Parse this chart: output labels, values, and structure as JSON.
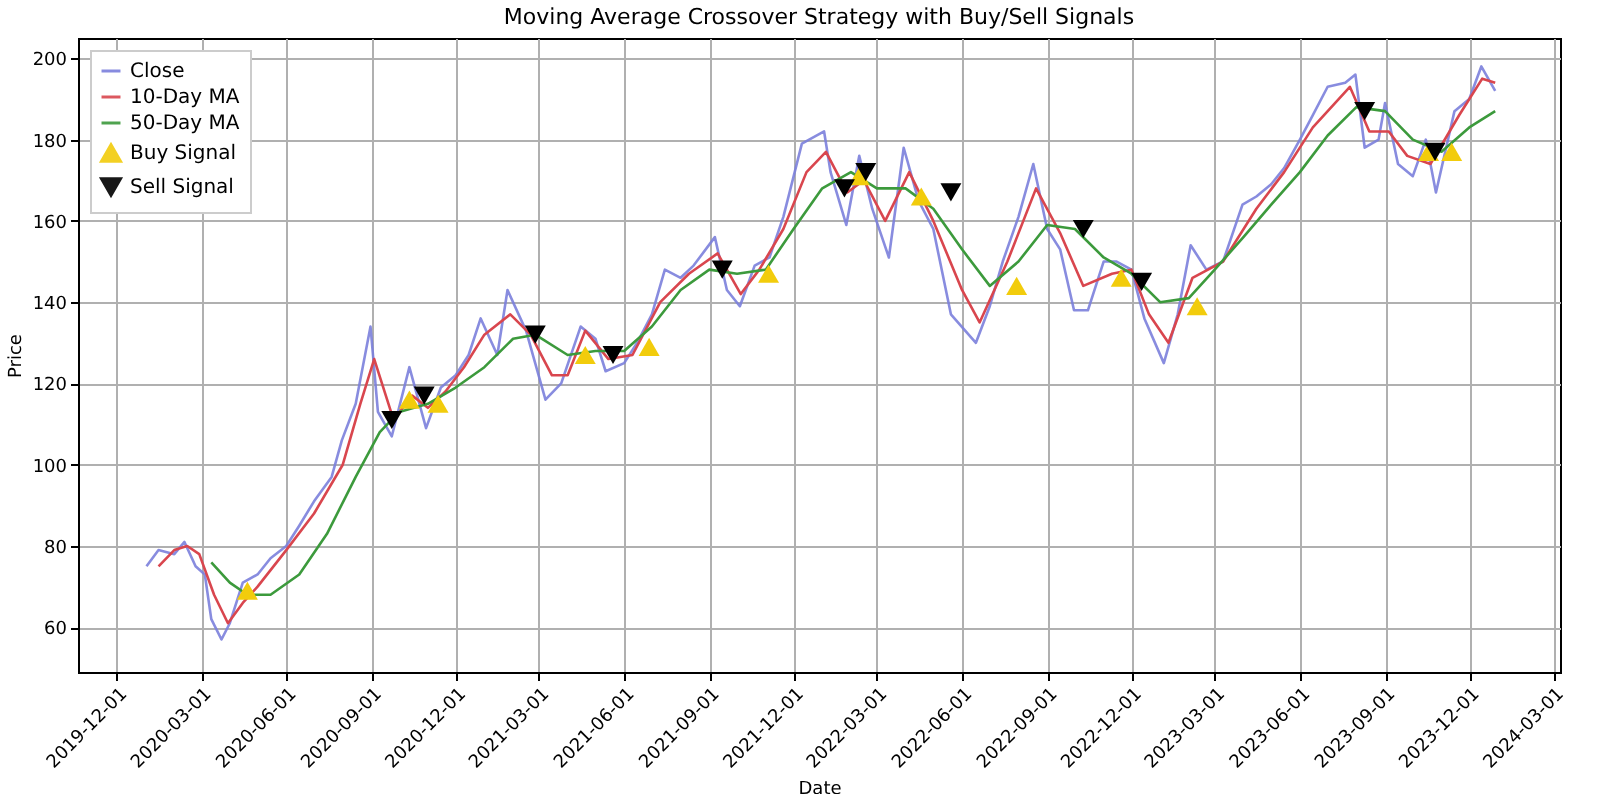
{
  "chart_data": {
    "type": "line",
    "title": "Moving Average Crossover Strategy with Buy/Sell Signals",
    "xlabel": "Date",
    "ylabel": "Price",
    "xlim": [
      "2019-10-20",
      "2024-03-08"
    ],
    "xticks": [
      "2019-12-01",
      "2020-03-01",
      "2020-06-01",
      "2020-09-01",
      "2020-12-01",
      "2021-03-01",
      "2021-06-01",
      "2021-09-01",
      "2021-12-01",
      "2022-03-01",
      "2022-06-01",
      "2022-09-01",
      "2022-12-01",
      "2023-03-01",
      "2023-06-01",
      "2023-09-01",
      "2023-12-01",
      "2024-03-01"
    ],
    "ylim": [
      49,
      205
    ],
    "yticks": [
      60,
      80,
      100,
      120,
      140,
      160,
      180,
      200
    ],
    "grid": true,
    "legend": "top left",
    "series": [
      {
        "name": "Close",
        "color": "#7b7fdc",
        "x": [
          "2020-01-02",
          "2020-01-15",
          "2020-02-01",
          "2020-02-12",
          "2020-02-24",
          "2020-03-05",
          "2020-03-12",
          "2020-03-23",
          "2020-04-01",
          "2020-04-15",
          "2020-05-01",
          "2020-05-15",
          "2020-06-01",
          "2020-06-15",
          "2020-07-01",
          "2020-07-20",
          "2020-07-31",
          "2020-08-15",
          "2020-08-31",
          "2020-09-08",
          "2020-09-23",
          "2020-10-12",
          "2020-10-30",
          "2020-11-15",
          "2020-12-01",
          "2020-12-15",
          "2020-12-28",
          "2021-01-15",
          "2021-01-26",
          "2021-02-15",
          "2021-03-08",
          "2021-03-25",
          "2021-04-15",
          "2021-05-01",
          "2021-05-12",
          "2021-06-01",
          "2021-06-15",
          "2021-07-01",
          "2021-07-15",
          "2021-08-01",
          "2021-08-15",
          "2021-09-07",
          "2021-09-20",
          "2021-10-04",
          "2021-10-20",
          "2021-11-05",
          "2021-11-20",
          "2021-12-10",
          "2022-01-03",
          "2022-01-10",
          "2022-01-27",
          "2022-02-10",
          "2022-02-24",
          "2022-03-14",
          "2022-03-30",
          "2022-04-15",
          "2022-05-01",
          "2022-05-20",
          "2022-06-16",
          "2022-07-01",
          "2022-07-15",
          "2022-08-01",
          "2022-08-17",
          "2022-09-01",
          "2022-09-15",
          "2022-09-30",
          "2022-10-15",
          "2022-11-01",
          "2022-11-15",
          "2022-12-01",
          "2022-12-15",
          "2023-01-05",
          "2023-01-20",
          "2023-02-03",
          "2023-02-20",
          "2023-03-10",
          "2023-03-31",
          "2023-04-15",
          "2023-05-01",
          "2023-05-15",
          "2023-06-01",
          "2023-06-15",
          "2023-07-01",
          "2023-07-20",
          "2023-07-31",
          "2023-08-10",
          "2023-08-25",
          "2023-09-01",
          "2023-09-15",
          "2023-10-01",
          "2023-10-15",
          "2023-10-26",
          "2023-11-15",
          "2023-12-01",
          "2023-12-14",
          "2023-12-29"
        ],
        "values": [
          75,
          79,
          78,
          81,
          75,
          73,
          62,
          57,
          61,
          71,
          73,
          77,
          80,
          85,
          91,
          97,
          106,
          115,
          134,
          113,
          107,
          124,
          109,
          119,
          122,
          127,
          136,
          127,
          143,
          133,
          116,
          120,
          134,
          131,
          123,
          125,
          130,
          137,
          148,
          146,
          149,
          156,
          143,
          139,
          149,
          151,
          161,
          179,
          182,
          172,
          159,
          176,
          163,
          151,
          178,
          165,
          158,
          137,
          130,
          139,
          150,
          161,
          174,
          158,
          153,
          138,
          138,
          150,
          150,
          148,
          136,
          125,
          137,
          154,
          148,
          150,
          164,
          166,
          169,
          173,
          180,
          186,
          193,
          194,
          196,
          178,
          180,
          189,
          174,
          171,
          180,
          167,
          187,
          190,
          198,
          192
        ]
      },
      {
        "name": "10-Day MA",
        "color": "#d9464e",
        "x": [
          "2020-01-15",
          "2020-02-01",
          "2020-02-15",
          "2020-02-28",
          "2020-03-15",
          "2020-03-30",
          "2020-04-15",
          "2020-05-01",
          "2020-06-01",
          "2020-07-01",
          "2020-08-01",
          "2020-08-20",
          "2020-09-04",
          "2020-09-25",
          "2020-10-15",
          "2020-11-01",
          "2020-11-20",
          "2020-12-10",
          "2021-01-01",
          "2021-01-29",
          "2021-02-20",
          "2021-03-15",
          "2021-04-01",
          "2021-04-20",
          "2021-05-15",
          "2021-06-10",
          "2021-07-10",
          "2021-08-10",
          "2021-09-10",
          "2021-10-05",
          "2021-10-25",
          "2021-11-20",
          "2021-12-15",
          "2022-01-05",
          "2022-01-28",
          "2022-02-15",
          "2022-03-10",
          "2022-04-05",
          "2022-05-01",
          "2022-06-01",
          "2022-06-20",
          "2022-07-20",
          "2022-08-20",
          "2022-09-15",
          "2022-10-10",
          "2022-11-10",
          "2022-12-01",
          "2022-12-20",
          "2023-01-10",
          "2023-02-05",
          "2023-03-10",
          "2023-04-15",
          "2023-05-15",
          "2023-06-15",
          "2023-07-25",
          "2023-08-15",
          "2023-09-05",
          "2023-09-25",
          "2023-10-20",
          "2023-11-20",
          "2023-12-15",
          "2023-12-29"
        ],
        "values": [
          75,
          79,
          80,
          78,
          68,
          61,
          66,
          70,
          79,
          88,
          100,
          115,
          126,
          111,
          117,
          114,
          118,
          124,
          132,
          137,
          132,
          122,
          122,
          133,
          126,
          127,
          140,
          147,
          152,
          142,
          148,
          158,
          172,
          177,
          167,
          170,
          160,
          172,
          160,
          143,
          135,
          150,
          168,
          157,
          144,
          147,
          148,
          137,
          130,
          146,
          150,
          163,
          172,
          183,
          193,
          182,
          182,
          176,
          174,
          186,
          195,
          194
        ]
      },
      {
        "name": "50-Day MA",
        "color": "#3c9a3c",
        "x": [
          "2020-03-12",
          "2020-04-01",
          "2020-04-20",
          "2020-05-15",
          "2020-06-15",
          "2020-07-15",
          "2020-08-15",
          "2020-09-10",
          "2020-10-01",
          "2020-11-01",
          "2020-12-01",
          "2021-01-01",
          "2021-02-01",
          "2021-02-25",
          "2021-04-01",
          "2021-05-01",
          "2021-06-01",
          "2021-07-01",
          "2021-08-01",
          "2021-09-01",
          "2021-10-01",
          "2021-11-01",
          "2021-12-01",
          "2022-01-01",
          "2022-02-01",
          "2022-03-01",
          "2022-04-01",
          "2022-05-01",
          "2022-06-01",
          "2022-07-01",
          "2022-08-01",
          "2022-09-01",
          "2022-10-01",
          "2022-11-01",
          "2022-12-01",
          "2023-01-01",
          "2023-02-01",
          "2023-03-01",
          "2023-04-01",
          "2023-05-01",
          "2023-06-01",
          "2023-07-01",
          "2023-08-01",
          "2023-09-01",
          "2023-10-01",
          "2023-11-01",
          "2023-12-01",
          "2023-12-29"
        ],
        "values": [
          76,
          71,
          68,
          68,
          73,
          83,
          97,
          108,
          113,
          115,
          119,
          124,
          131,
          132,
          127,
          128,
          128,
          134,
          143,
          148,
          147,
          148,
          158,
          168,
          172,
          168,
          168,
          163,
          153,
          144,
          150,
          159,
          158,
          151,
          147,
          140,
          141,
          148,
          156,
          164,
          172,
          181,
          188,
          187,
          180,
          177,
          183,
          187
        ]
      },
      {
        "name": "Buy Signal",
        "type": "scatter",
        "marker": "triangle",
        "color": "#f2cc0c",
        "x": [
          "2020-04-20",
          "2020-10-12",
          "2020-11-12",
          "2021-04-20",
          "2021-06-28",
          "2021-11-04",
          "2022-02-10",
          "2022-04-18",
          "2022-07-30",
          "2022-11-20",
          "2023-02-10",
          "2023-10-18",
          "2023-11-12"
        ],
        "values": [
          69,
          116,
          115,
          127,
          129,
          147,
          171,
          166,
          144,
          146,
          139,
          177,
          177
        ]
      },
      {
        "name": "Sell Signal",
        "type": "scatter",
        "marker": "triangle-down",
        "color": "#000000",
        "x": [
          "2020-09-23",
          "2020-10-28",
          "2021-02-25",
          "2021-05-20",
          "2021-09-15",
          "2022-01-25",
          "2022-02-17",
          "2022-05-20",
          "2022-10-10",
          "2022-12-12",
          "2023-08-10",
          "2023-10-25"
        ],
        "values": [
          111,
          117,
          132,
          127,
          148,
          168,
          172,
          167,
          158,
          145,
          187,
          177
        ]
      }
    ]
  }
}
